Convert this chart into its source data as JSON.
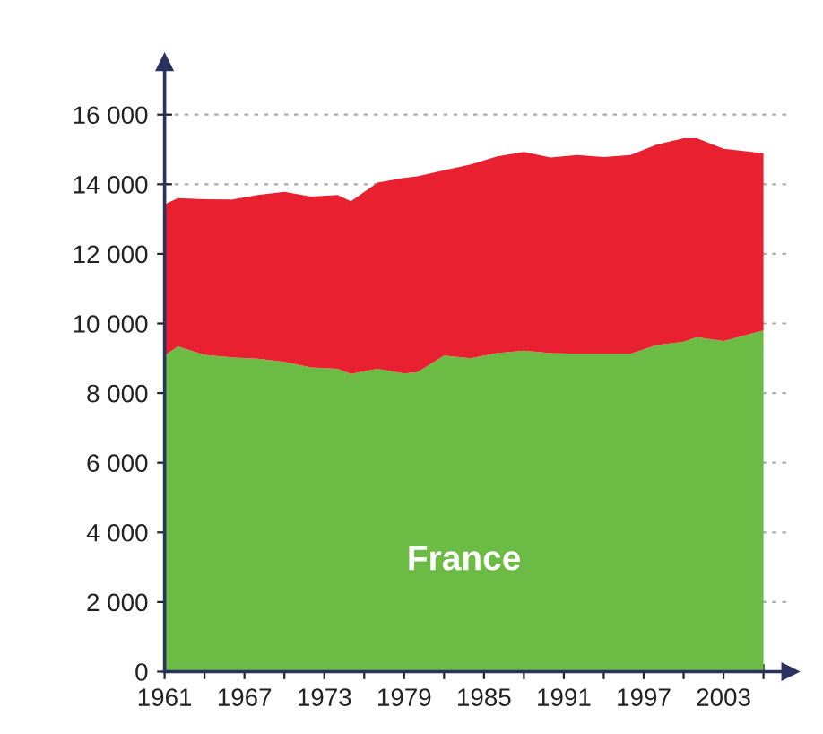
{
  "chart_data": {
    "type": "area",
    "stacked": true,
    "x": [
      1961,
      1962,
      1964,
      1966,
      1968,
      1970,
      1972,
      1974,
      1975,
      1977,
      1979,
      1980,
      1982,
      1984,
      1986,
      1988,
      1990,
      1992,
      1994,
      1996,
      1998,
      2000,
      2001,
      2003,
      2006
    ],
    "series": [
      {
        "name": "France",
        "color": "#6cbb45",
        "values": [
          9080,
          9340,
          9100,
          9030,
          8990,
          8900,
          8740,
          8700,
          8550,
          8700,
          8560,
          8600,
          9080,
          9000,
          9150,
          9220,
          9150,
          9130,
          9130,
          9130,
          9380,
          9480,
          9610,
          9500,
          9800
        ]
      },
      {
        "color": "#e8202f",
        "values": [
          4340,
          4260,
          4470,
          4530,
          4700,
          4880,
          4910,
          4990,
          4960,
          5350,
          5620,
          5630,
          5320,
          5570,
          5650,
          5710,
          5620,
          5710,
          5650,
          5710,
          5760,
          5840,
          5710,
          5520,
          5090
        ]
      }
    ],
    "xlim": [
      1961,
      2008
    ],
    "ylim": [
      0,
      17500
    ],
    "xticks": [
      1961,
      {
        "value": 1964,
        "label": null
      },
      1967,
      {
        "value": 1970,
        "label": null
      },
      1973,
      {
        "value": 1976,
        "label": null
      },
      1979,
      {
        "value": 1982,
        "label": null
      },
      1985,
      {
        "value": 1988,
        "label": null
      },
      1991,
      {
        "value": 1994,
        "label": null
      },
      1997,
      {
        "value": 2000,
        "label": null
      },
      2003,
      {
        "value": 2006,
        "label": null
      }
    ],
    "yticks": [
      0,
      {
        "value": 2000,
        "label": "2 000"
      },
      {
        "value": 4000,
        "label": "4 000"
      },
      {
        "value": 6000,
        "label": "6 000"
      },
      {
        "value": 8000,
        "label": "8 000"
      },
      {
        "value": 10000,
        "label": "10 000"
      },
      {
        "value": 12000,
        "label": "12 000"
      },
      {
        "value": 14000,
        "label": "14 000"
      },
      {
        "value": 16000,
        "label": "16 000"
      }
    ],
    "grid": "y",
    "legend": false
  }
}
